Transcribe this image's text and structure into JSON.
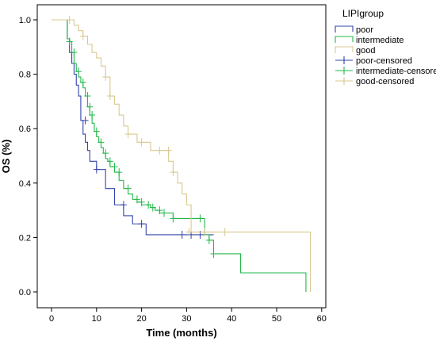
{
  "chart_data": {
    "type": "line",
    "title": "",
    "xlabel": "Time (months)",
    "ylabel": "OS (%)",
    "xlim": [
      0,
      60
    ],
    "ylim": [
      0,
      1
    ],
    "xticks": [
      0,
      10,
      20,
      30,
      40,
      50,
      60
    ],
    "yticks": [
      0.0,
      0.2,
      0.4,
      0.6,
      0.8,
      1.0
    ],
    "xtick_labels": [
      "0",
      "10",
      "20",
      "30",
      "40",
      "50",
      "60"
    ],
    "ytick_labels": [
      "0.0",
      "0.2",
      "0.4",
      "0.6",
      "0.8",
      "1.0"
    ],
    "grid": false,
    "legend": {
      "title": "LIPIgroup",
      "placement": "top-right",
      "entries": [
        "poor",
        "intermediate",
        "good",
        "poor-censored",
        "intermediate-censored",
        "good-censored"
      ]
    },
    "series": [
      {
        "name": "poor",
        "color": "#3344aa",
        "step_x": [
          0,
          3,
          3.5,
          4,
          4.5,
          5,
          5.5,
          6,
          6.5,
          7,
          7.5,
          8,
          8.5,
          9,
          10,
          12,
          14,
          16,
          18,
          21,
          36
        ],
        "step_y": [
          1.0,
          1.0,
          0.93,
          0.88,
          0.84,
          0.8,
          0.76,
          0.72,
          0.63,
          0.58,
          0.55,
          0.52,
          0.48,
          0.48,
          0.45,
          0.38,
          0.32,
          0.28,
          0.25,
          0.21,
          0.21
        ],
        "censored_x": [
          7.5,
          10,
          16,
          20,
          29,
          31,
          33
        ],
        "censored_y": [
          0.63,
          0.45,
          0.32,
          0.25,
          0.21,
          0.21,
          0.21
        ]
      },
      {
        "name": "intermediate",
        "color": "#22b84a",
        "step_x": [
          0,
          3,
          3.5,
          4,
          4.5,
          5,
          5.5,
          6,
          6.5,
          7,
          7.5,
          8,
          8.5,
          9,
          9.5,
          10,
          10.5,
          11,
          11.5,
          12,
          12.5,
          13,
          14,
          15,
          16,
          17,
          18,
          19,
          20,
          22,
          23,
          24,
          26,
          27,
          29,
          32,
          34,
          35,
          36,
          42,
          56.5
        ],
        "step_y": [
          1.0,
          1.0,
          0.93,
          0.92,
          0.88,
          0.84,
          0.81,
          0.79,
          0.77,
          0.75,
          0.72,
          0.68,
          0.65,
          0.62,
          0.59,
          0.57,
          0.55,
          0.53,
          0.51,
          0.49,
          0.48,
          0.46,
          0.44,
          0.41,
          0.38,
          0.36,
          0.34,
          0.33,
          0.32,
          0.31,
          0.3,
          0.29,
          0.29,
          0.27,
          0.27,
          0.27,
          0.21,
          0.19,
          0.14,
          0.07,
          0.0
        ],
        "censored_x": [
          4,
          5,
          6,
          7,
          8,
          8.5,
          9,
          10,
          11,
          12,
          13,
          14,
          15,
          17,
          19,
          20,
          21.5,
          22.5,
          24,
          25,
          27,
          33,
          35,
          36
        ],
        "censored_y": [
          0.92,
          0.88,
          0.81,
          0.77,
          0.72,
          0.68,
          0.65,
          0.59,
          0.55,
          0.51,
          0.48,
          0.46,
          0.44,
          0.38,
          0.34,
          0.33,
          0.32,
          0.31,
          0.3,
          0.29,
          0.27,
          0.27,
          0.19,
          0.14
        ]
      },
      {
        "name": "good",
        "color": "#d9c890",
        "step_x": [
          0,
          4,
          5,
          6,
          7,
          8,
          9,
          10,
          11,
          12,
          13,
          14,
          15,
          16,
          17,
          19,
          20,
          22,
          25,
          26,
          27,
          28,
          29,
          30,
          31,
          57.5
        ],
        "step_y": [
          1.0,
          1.0,
          0.98,
          0.96,
          0.94,
          0.91,
          0.88,
          0.86,
          0.83,
          0.79,
          0.72,
          0.69,
          0.65,
          0.61,
          0.58,
          0.55,
          0.55,
          0.52,
          0.52,
          0.48,
          0.44,
          0.4,
          0.36,
          0.32,
          0.22,
          0.0
        ],
        "censored_x": [
          4,
          7,
          12,
          13,
          17,
          20,
          24,
          26,
          27,
          30.5,
          34,
          38.5
        ],
        "censored_y": [
          1.0,
          0.94,
          0.79,
          0.72,
          0.58,
          0.55,
          0.52,
          0.52,
          0.44,
          0.22,
          0.22,
          0.22
        ]
      }
    ]
  }
}
